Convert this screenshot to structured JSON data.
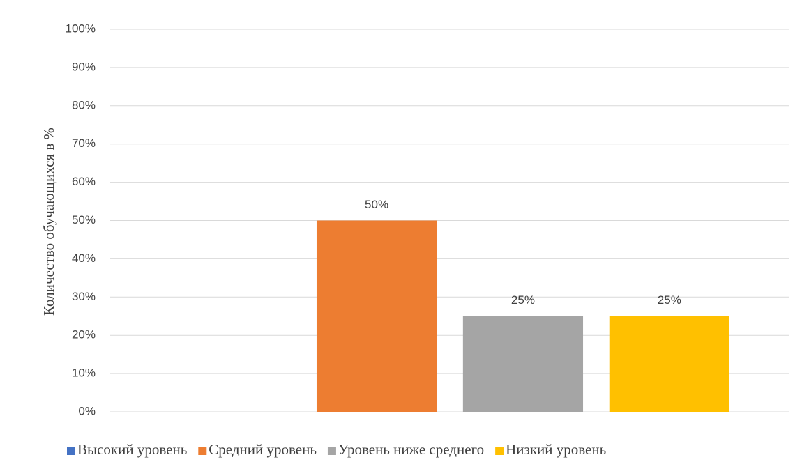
{
  "chart_data": {
    "type": "bar",
    "title": "",
    "xlabel": "",
    "ylabel": "Количество обучающихся в %",
    "ylim": [
      0,
      100
    ],
    "yticks": [
      0,
      10,
      20,
      30,
      40,
      50,
      60,
      70,
      80,
      90,
      100
    ],
    "ytick_suffix": "%",
    "grid": true,
    "legend_position": "bottom",
    "series": [
      {
        "name": "Высокий уровень",
        "value": 0,
        "label": "",
        "color": "#4472C4"
      },
      {
        "name": "Средний уровень",
        "value": 50,
        "label": "50%",
        "color": "#ED7D31"
      },
      {
        "name": "Уровень ниже среднего",
        "value": 25,
        "label": "25%",
        "color": "#A5A5A5"
      },
      {
        "name": "Низкий уровень",
        "value": 25,
        "label": "25%",
        "color": "#FFC000"
      }
    ]
  }
}
